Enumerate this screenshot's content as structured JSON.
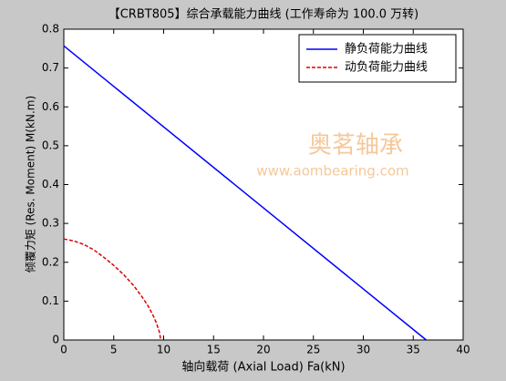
{
  "chart_data": {
    "type": "line",
    "title": "【CRBT805】综合承载能力曲线 (工作寿命为 100.0 万转)",
    "x_label": "轴向载荷 (Axial Load) Fa(kN)",
    "y_label": "倾覆力矩 (Res. Moment) M(kN.m)",
    "watermark": [
      "奥茗轴承",
      "www.aombearing.com"
    ],
    "series": [
      {
        "name": "静负荷能力曲线",
        "color": "#0000ff",
        "dash": false,
        "x": [
          0,
          36.3
        ],
        "values": [
          0.757,
          0
        ]
      },
      {
        "name": "动负荷能力曲线",
        "color": "#dd0000",
        "dash": true,
        "x": [
          0,
          1,
          2,
          3,
          4,
          5,
          6,
          7,
          8,
          8.5,
          9,
          9.3,
          9.6,
          9.7
        ],
        "values": [
          0.26,
          0.255,
          0.246,
          0.232,
          0.213,
          0.192,
          0.168,
          0.14,
          0.105,
          0.085,
          0.06,
          0.042,
          0.018,
          0
        ]
      }
    ],
    "xlim": [
      0,
      40
    ],
    "xticks": [
      0,
      5,
      10,
      15,
      20,
      25,
      30,
      35,
      40
    ],
    "ylim": [
      0,
      0.8
    ],
    "yticks": [
      0,
      0.1,
      0.2,
      0.3,
      0.4,
      0.5,
      0.6,
      0.7,
      0.8
    ],
    "legend": "northeast",
    "grid": false
  }
}
